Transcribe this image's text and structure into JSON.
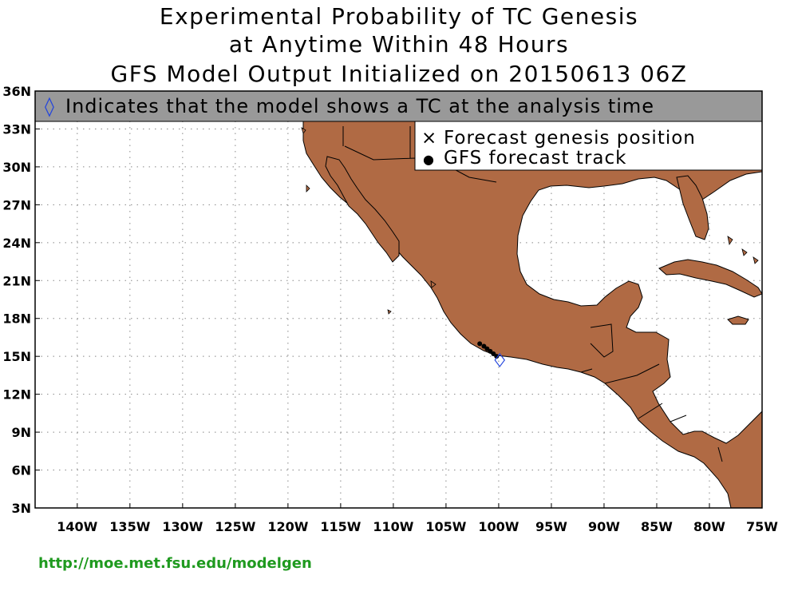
{
  "title": {
    "line1": "Experimental Probability of TC Genesis",
    "line2": "at Anytime Within 48 Hours",
    "line3": "GFS Model Output Initialized on 20150613 06Z"
  },
  "banner": {
    "symbol": "◊",
    "text": "Indicates that the model shows a TC at the analysis time"
  },
  "legend": {
    "genesis_symbol": "×",
    "genesis_label": "Forecast genesis position",
    "track_symbol": "●",
    "track_label": "GFS forecast track"
  },
  "axes": {
    "longitude_labels": [
      "140W",
      "135W",
      "130W",
      "125W",
      "120W",
      "115W",
      "110W",
      "105W",
      "100W",
      "95W",
      "90W",
      "85W",
      "80W",
      "75W"
    ],
    "latitude_labels": [
      "36N",
      "33N",
      "30N",
      "27N",
      "24N",
      "21N",
      "18N",
      "15N",
      "12N",
      "9N",
      "6N",
      "3N"
    ],
    "lon_range": [
      -144,
      -75
    ],
    "lat_range": [
      3,
      36
    ],
    "grid": "dotted"
  },
  "track": {
    "points": [
      [
        -101.8,
        16.0
      ],
      [
        -101.4,
        15.8
      ],
      [
        -101.1,
        15.6
      ],
      [
        -100.8,
        15.4
      ],
      [
        -100.5,
        15.2
      ],
      [
        -100.2,
        15.0
      ]
    ],
    "analysis_position": [
      -99.9,
      14.7
    ]
  },
  "colors": {
    "land": "#b06a44",
    "banner": "#999999",
    "track": "#000000",
    "analysis_marker": "#2244dd",
    "url": "#1f9a1f"
  },
  "footer": {
    "url": "http://moe.met.fsu.edu/modelgen"
  }
}
